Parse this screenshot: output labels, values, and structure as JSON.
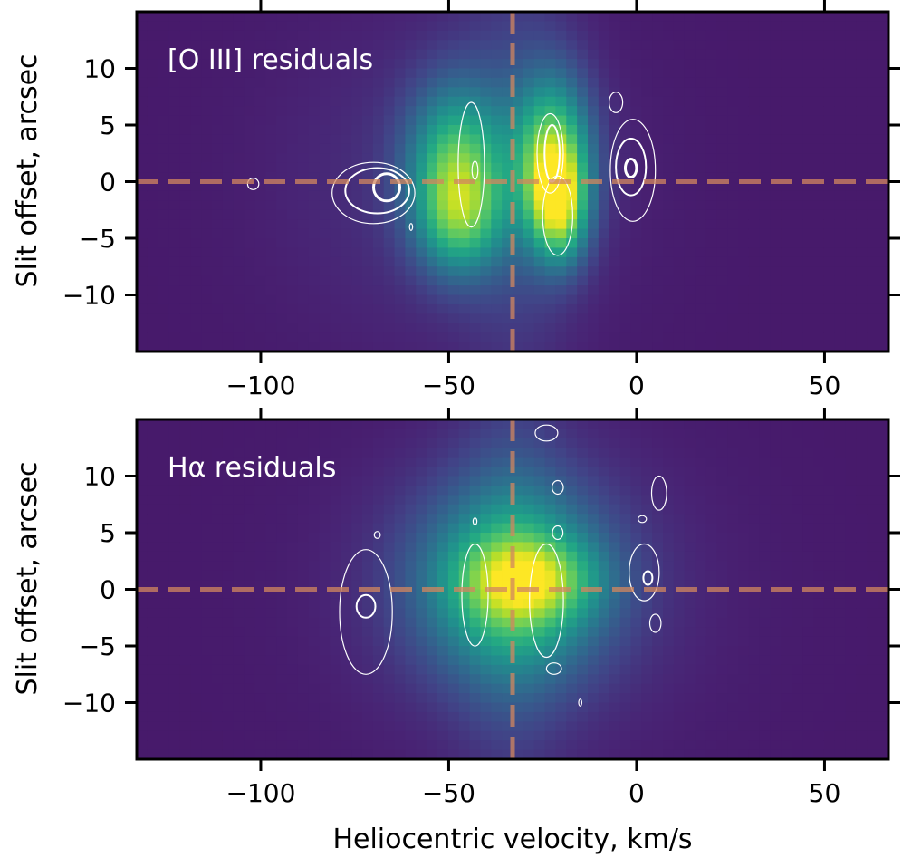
{
  "chart_data": [
    {
      "type": "heatmap",
      "title": "[O III] residuals",
      "xlabel": "",
      "ylabel": "Slit offset, arcsec",
      "xlim": [
        -133,
        67
      ],
      "ylim": [
        -15,
        15
      ],
      "xticks": [
        -100,
        -50,
        0,
        50
      ],
      "xtick_labels": [
        "−100",
        "−50",
        "0",
        "50"
      ],
      "yticks": [
        10,
        5,
        0,
        -5,
        -10
      ],
      "ytick_labels": [
        "10",
        "5",
        "0",
        "−5",
        "−10"
      ],
      "colormap": "viridis",
      "reference_lines": {
        "x": -33,
        "y": 0,
        "style": "dashed",
        "color": "#d2875f"
      },
      "blobs": [
        {
          "x": -48,
          "y": 1.5,
          "sx": 9,
          "sy": 5,
          "amp": 0.55
        },
        {
          "x": -47,
          "y": -3.5,
          "sx": 8,
          "sy": 3.5,
          "amp": 0.35
        },
        {
          "x": -22,
          "y": 2,
          "sx": 7,
          "sy": 5,
          "amp": 0.65
        },
        {
          "x": -21,
          "y": -1,
          "sx": 5,
          "sy": 3,
          "amp": 0.35
        },
        {
          "x": -20,
          "y": -4,
          "sx": 5,
          "sy": 3,
          "amp": 0.25
        },
        {
          "x": -32,
          "y": 2,
          "sx": 10,
          "sy": 16,
          "amp": 0.1
        },
        {
          "x": -50,
          "y": 0,
          "sx": 30,
          "sy": 10,
          "amp": 0.08
        }
      ],
      "contours": [
        {
          "level": 1,
          "cx": -70,
          "cy": -1,
          "rx": 11,
          "ry": 2.7
        },
        {
          "level": 2,
          "cx": -69,
          "cy": -0.8,
          "rx": 8.5,
          "ry": 2
        },
        {
          "level": 3,
          "cx": -66.5,
          "cy": -0.5,
          "rx": 3.5,
          "ry": 1.2
        },
        {
          "level": 1,
          "cx": -44,
          "cy": 1.5,
          "rx": 3.5,
          "ry": 5.5
        },
        {
          "level": 1,
          "cx": -43,
          "cy": 1,
          "rx": 0.8,
          "ry": 0.8
        },
        {
          "level": 1,
          "cx": -21,
          "cy": -3,
          "rx": 4,
          "ry": 3.5
        },
        {
          "level": 1,
          "cx": -23,
          "cy": 2.5,
          "rx": 3.5,
          "ry": 3.5
        },
        {
          "level": 2,
          "cx": -22.5,
          "cy": 2.5,
          "rx": 2,
          "ry": 2.5
        },
        {
          "level": 1,
          "cx": -1,
          "cy": 1,
          "rx": 6,
          "ry": 4.5
        },
        {
          "level": 2,
          "cx": -1.5,
          "cy": 1.3,
          "rx": 4,
          "ry": 2.5
        },
        {
          "level": 3,
          "cx": -1.5,
          "cy": 1.2,
          "rx": 1.5,
          "ry": 0.8
        },
        {
          "level": 1,
          "cx": -5.5,
          "cy": 7,
          "rx": 1.8,
          "ry": 0.9
        },
        {
          "level": 1,
          "cx": -102,
          "cy": -0.2,
          "rx": 1.5,
          "ry": 0.5
        },
        {
          "level": 1,
          "cx": -60,
          "cy": -4,
          "rx": 0.4,
          "ry": 0.3
        }
      ]
    },
    {
      "type": "heatmap",
      "title": "Hα residuals",
      "xlabel": "Heliocentric velocity, km/s",
      "ylabel": "Slit offset, arcsec",
      "xlim": [
        -133,
        67
      ],
      "ylim": [
        -15,
        15
      ],
      "xticks": [
        -100,
        -50,
        0,
        50
      ],
      "xtick_labels": [
        "−100",
        "−50",
        "0",
        "50"
      ],
      "yticks": [
        10,
        5,
        0,
        -5,
        -10
      ],
      "ytick_labels": [
        "10",
        "5",
        "0",
        "−5",
        "−10"
      ],
      "colormap": "viridis",
      "reference_lines": {
        "x": -33,
        "y": 0,
        "style": "dashed",
        "color": "#d2875f"
      },
      "blobs": [
        {
          "x": -33,
          "y": 0.5,
          "sx": 18,
          "sy": 6,
          "amp": 0.55
        },
        {
          "x": -28,
          "y": 0.8,
          "sx": 12,
          "sy": 2.5,
          "amp": 0.35
        },
        {
          "x": -33,
          "y": 2,
          "sx": 10,
          "sy": 16,
          "amp": 0.1
        },
        {
          "x": -30,
          "y": 0,
          "sx": 35,
          "sy": 10,
          "amp": 0.06
        }
      ],
      "contours": [
        {
          "level": 1,
          "cx": -72,
          "cy": -2,
          "rx": 7,
          "ry": 5.5
        },
        {
          "level": 2,
          "cx": -72,
          "cy": -1.5,
          "rx": 2.5,
          "ry": 1
        },
        {
          "level": 1,
          "cx": -43,
          "cy": -0.5,
          "rx": 3.5,
          "ry": 4.5
        },
        {
          "level": 1,
          "cx": -24,
          "cy": -1,
          "rx": 4.5,
          "ry": 5
        },
        {
          "level": 1,
          "cx": 2,
          "cy": 1.5,
          "rx": 4,
          "ry": 2.5
        },
        {
          "level": 2,
          "cx": 3,
          "cy": 1,
          "rx": 1.2,
          "ry": 0.6
        },
        {
          "level": 1,
          "cx": 6,
          "cy": 8.5,
          "rx": 2,
          "ry": 1.5
        },
        {
          "level": 1,
          "cx": 5,
          "cy": -3,
          "rx": 1.5,
          "ry": 0.8
        },
        {
          "level": 1,
          "cx": -24,
          "cy": 13.8,
          "rx": 3,
          "ry": 0.7
        },
        {
          "level": 1,
          "cx": -21,
          "cy": 9,
          "rx": 1.5,
          "ry": 0.6
        },
        {
          "level": 1,
          "cx": -21,
          "cy": 5,
          "rx": 1.4,
          "ry": 0.6
        },
        {
          "level": 1,
          "cx": -22,
          "cy": -7,
          "rx": 2,
          "ry": 0.5
        },
        {
          "level": 1,
          "cx": -15,
          "cy": -10,
          "rx": 0.4,
          "ry": 0.3
        },
        {
          "level": 1,
          "cx": 1.5,
          "cy": 6.2,
          "rx": 1.1,
          "ry": 0.3
        },
        {
          "level": 1,
          "cx": -69,
          "cy": 4.8,
          "rx": 0.8,
          "ry": 0.3
        },
        {
          "level": 1,
          "cx": -43,
          "cy": 6,
          "rx": 0.5,
          "ry": 0.3
        }
      ]
    }
  ]
}
